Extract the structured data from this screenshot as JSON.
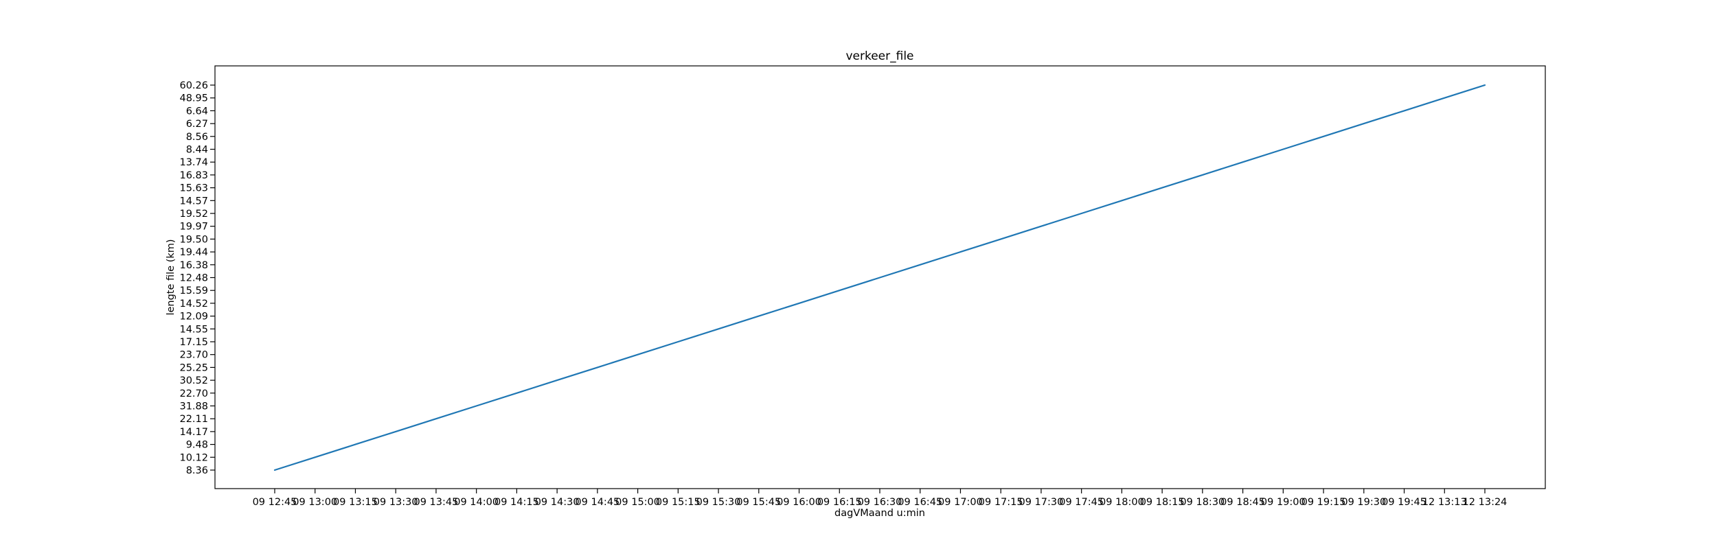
{
  "chart_data": {
    "type": "line",
    "title": "verkeer_file",
    "xlabel": "dagVMaand u:min",
    "ylabel": "lengte file (km)",
    "categories": [
      "09 12:45",
      "09 13:00",
      "09 13:15",
      "09 13:30",
      "09 13:45",
      "09 14:00",
      "09 14:15",
      "09 14:30",
      "09 14:45",
      "09 15:00",
      "09 15:15",
      "09 15:30",
      "09 15:45",
      "09 16:00",
      "09 16:15",
      "09 16:30",
      "09 16:45",
      "09 17:00",
      "09 17:15",
      "09 17:30",
      "09 17:45",
      "09 18:00",
      "09 18:15",
      "09 18:30",
      "09 18:45",
      "09 19:00",
      "09 19:15",
      "09 19:30",
      "09 19:45",
      "12 13:13",
      "12 13:24"
    ],
    "series": [
      {
        "values": [
          "8.36",
          "10.12",
          "9.48",
          "14.17",
          "22.11",
          "31.88",
          "22.70",
          "30.52",
          "25.25",
          "23.70",
          "17.15",
          "14.55",
          "12.09",
          "14.52",
          "15.59",
          "12.48",
          "16.38",
          "19.44",
          "19.50",
          "19.97",
          "19.52",
          "14.57",
          "15.63",
          "16.83",
          "13.74",
          "8.44",
          "8.56",
          "6.27",
          "6.64",
          "48.95",
          "60.26"
        ],
        "color": "#1f77b4"
      }
    ],
    "y_axis": "categorical",
    "grid": false,
    "legend": "none"
  }
}
